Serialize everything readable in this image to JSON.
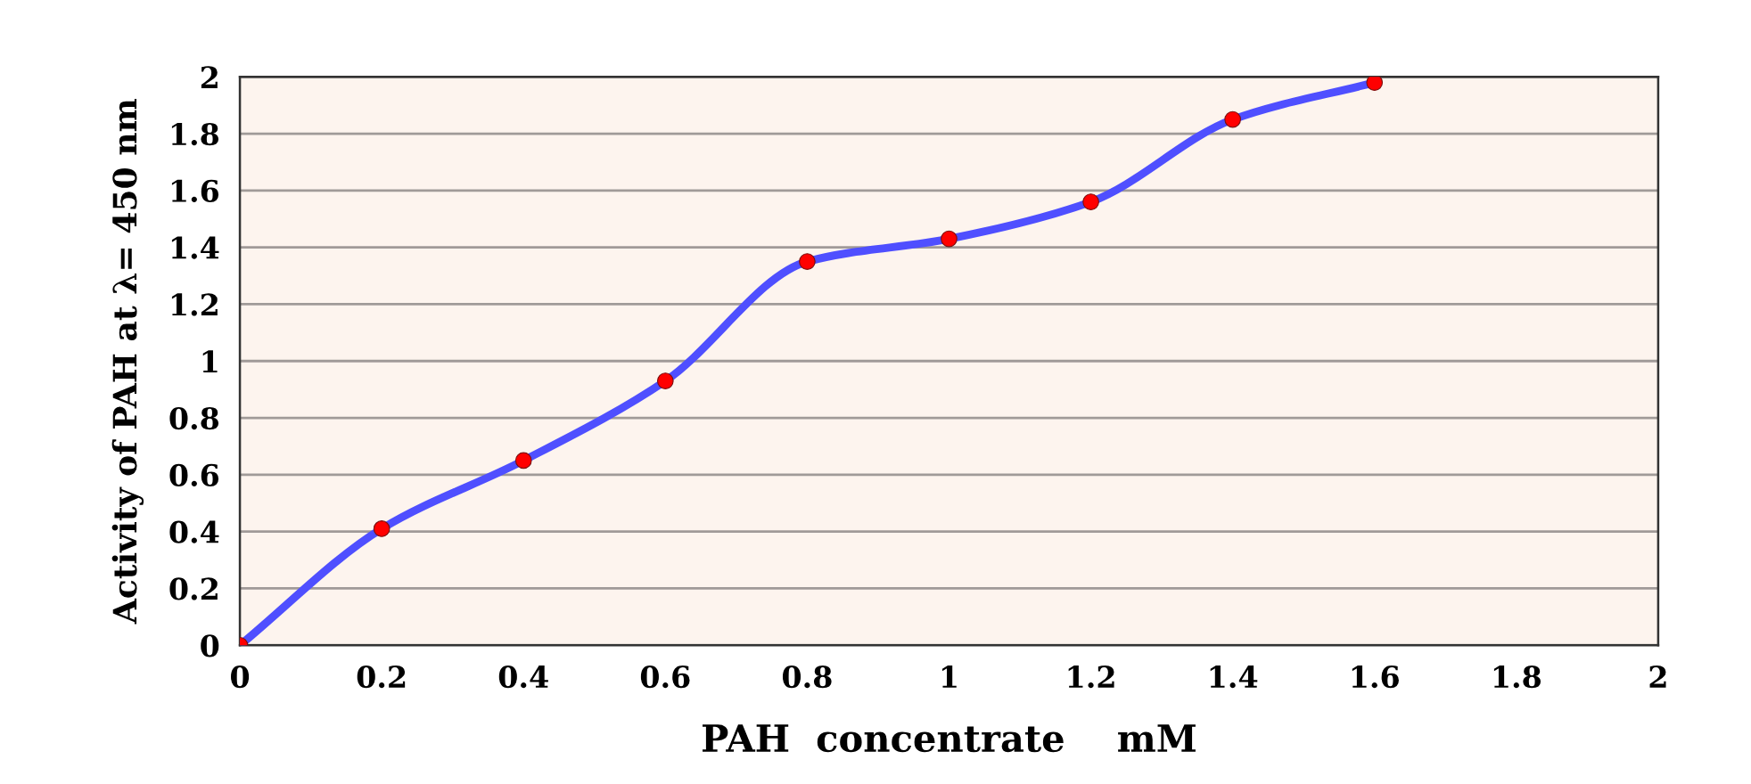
{
  "chart_data": {
    "type": "line",
    "xlabel": "PAH  concentrate    mM",
    "ylabel": "Activity of PAH at λ= 450 nm",
    "x": [
      0,
      0.2,
      0.4,
      0.6,
      0.8,
      1,
      1.2,
      1.4,
      1.6
    ],
    "series": [
      {
        "color": "#4f4fff",
        "colors": [
          "#ff0000",
          "#ff0000",
          "#ff0000",
          "#ff0000",
          "#ff0000",
          "#ff0000",
          "#ff0000",
          "#ff0000",
          "#ff0000"
        ],
        "values": [
          0,
          0.41,
          0.65,
          0.93,
          1.35,
          1.43,
          1.56,
          1.85,
          1.98
        ]
      }
    ],
    "xlim": [
      0,
      2
    ],
    "xticks": [
      0,
      0.2,
      0.4,
      0.6,
      0.8,
      1,
      1.2,
      1.4,
      1.6,
      1.8,
      2
    ],
    "ylim": [
      0,
      2
    ],
    "yticks": [
      0,
      0.2,
      0.4,
      0.6,
      0.8,
      1,
      1.2,
      1.4,
      1.6,
      1.8,
      2
    ],
    "grid": "y",
    "marker": "circle",
    "line_style": "solid",
    "legend": false
  }
}
